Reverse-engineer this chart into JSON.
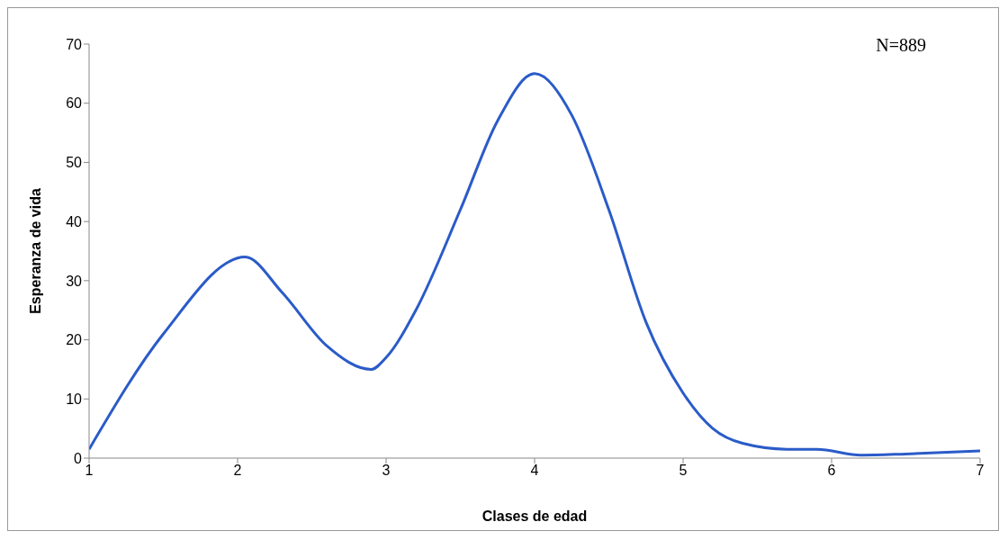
{
  "chart_data": {
    "type": "line",
    "xlabel": "Clases de edad",
    "ylabel": "Esperanza de vida",
    "annotations": [
      "N=889"
    ],
    "x": [
      1,
      1.5,
      2.05,
      2.3,
      2.6,
      2.9,
      3.0,
      3.2,
      3.5,
      3.75,
      4.0,
      4.25,
      4.5,
      4.75,
      5.0,
      5.2,
      5.4,
      5.7,
      5.9,
      6.2,
      6.5,
      7
    ],
    "series": [
      {
        "color": "#2a5bc8",
        "values": [
          1.5,
          21,
          34,
          28,
          19,
          15,
          17,
          25,
          42,
          57,
          65,
          58,
          42,
          23,
          11,
          5,
          2.5,
          1.5,
          1.5,
          0.5,
          0.7,
          1.2
        ]
      }
    ],
    "xlim": [
      1,
      7
    ],
    "xticks": [
      1,
      2,
      3,
      4,
      5,
      6,
      7
    ],
    "ylim": [
      0,
      70
    ],
    "yticks": [
      0,
      10,
      20,
      30,
      40,
      50,
      60,
      70
    ],
    "grid": false,
    "legend": false,
    "marker": "none",
    "line_style": "solid"
  }
}
